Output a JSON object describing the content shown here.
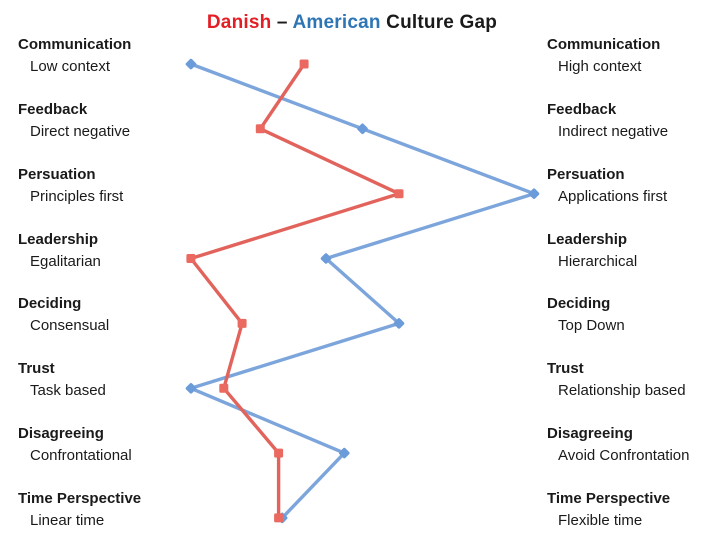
{
  "title": {
    "danish_label": "Danish",
    "separator": " – ",
    "american_label": "American",
    "rest_label": " Culture Gap",
    "danish_color": "#E31E25",
    "american_color": "#2E75B6",
    "text_color": "#1a1a1a"
  },
  "chart_data": {
    "type": "line",
    "title": "Danish – American Culture Gap",
    "orientation": "vertical-category-rows, horizontal value scale",
    "xlim": [
      0,
      100
    ],
    "grid": false,
    "legend": "series identified by colored words in title (Danish = red, American = blue)",
    "categories": [
      "Communication",
      "Feedback",
      "Persuation",
      "Leadership",
      "Deciding",
      "Trust",
      "Disagreeing",
      "Time Perspective"
    ],
    "left_labels": [
      "Low context",
      "Direct negative",
      "Principles first",
      "Egalitarian",
      "Consensual",
      "Task based",
      "Confrontational",
      "Linear time"
    ],
    "right_labels": [
      "High context",
      "Indirect negative",
      "Applications first",
      "Hierarchical",
      "Top Down",
      "Relationship based",
      "Avoid Confrontation",
      "Flexible time"
    ],
    "series": [
      {
        "name": "Danish",
        "color": "#E2635C",
        "marker": "square",
        "marker_color": "#EA6A62",
        "values": [
          34,
          22,
          60,
          3,
          17,
          12,
          27,
          27
        ]
      },
      {
        "name": "American",
        "color": "#7CA5DC",
        "marker": "diamond",
        "marker_color": "#6B9BD8",
        "values": [
          3,
          50,
          97,
          40,
          60,
          3,
          45,
          28
        ]
      }
    ]
  }
}
